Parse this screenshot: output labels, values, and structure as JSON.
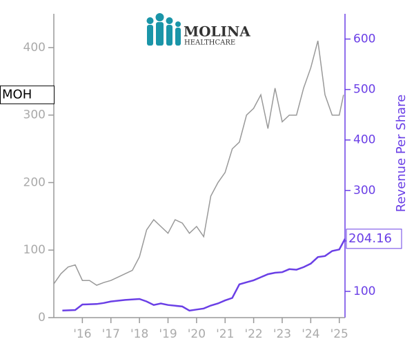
{
  "logo": {
    "name": "MOLINA",
    "tagline": "HEALTHCARE"
  },
  "chart_data": {
    "type": "line",
    "xlim": [
      2015.0,
      2025.2
    ],
    "xticks": [
      {
        "value": 2016,
        "label": "'16"
      },
      {
        "value": 2017,
        "label": "'17"
      },
      {
        "value": 2018,
        "label": "'18"
      },
      {
        "value": 2019,
        "label": "'19"
      },
      {
        "value": 2020,
        "label": "'20"
      },
      {
        "value": 2021,
        "label": "'21"
      },
      {
        "value": 2022,
        "label": "'22"
      },
      {
        "value": 2023,
        "label": "'23"
      },
      {
        "value": 2024,
        "label": "'24"
      },
      {
        "value": 2025,
        "label": "'25"
      }
    ],
    "ylim": [
      0,
      450
    ],
    "yticks": [
      0,
      100,
      200,
      300,
      400
    ],
    "y2lim": [
      48,
      650
    ],
    "y2ticks": [
      100,
      200,
      300,
      400,
      500,
      600
    ],
    "series": [
      {
        "name": "MOH",
        "color": "#999999",
        "axis": "y",
        "x": [
          2015.0,
          2015.25,
          2015.5,
          2015.75,
          2016.0,
          2016.25,
          2016.5,
          2016.75,
          2017.0,
          2017.25,
          2017.5,
          2017.75,
          2018.0,
          2018.25,
          2018.5,
          2018.75,
          2019.0,
          2019.25,
          2019.5,
          2019.75,
          2020.0,
          2020.25,
          2020.5,
          2020.75,
          2021.0,
          2021.25,
          2021.5,
          2021.75,
          2022.0,
          2022.25,
          2022.5,
          2022.75,
          2023.0,
          2023.25,
          2023.5,
          2023.75,
          2024.0,
          2024.25,
          2024.5,
          2024.75,
          2025.0,
          2025.15
        ],
        "values": [
          50,
          65,
          75,
          78,
          55,
          55,
          48,
          52,
          55,
          60,
          65,
          70,
          90,
          130,
          145,
          135,
          125,
          145,
          140,
          125,
          135,
          120,
          180,
          200,
          215,
          250,
          260,
          300,
          310,
          330,
          280,
          340,
          290,
          300,
          300,
          340,
          370,
          410,
          330,
          300,
          300,
          330
        ]
      },
      {
        "name": "Revenue Per Share",
        "color": "#6a3fe6",
        "axis": "y2",
        "x": [
          2015.3,
          2015.75,
          2016.0,
          2016.5,
          2016.75,
          2017.0,
          2017.5,
          2018.0,
          2018.25,
          2018.5,
          2018.75,
          2019.0,
          2019.5,
          2019.75,
          2020.0,
          2020.25,
          2020.5,
          2020.75,
          2021.0,
          2021.25,
          2021.5,
          2021.75,
          2022.0,
          2022.25,
          2022.5,
          2022.75,
          2023.0,
          2023.25,
          2023.5,
          2023.75,
          2024.0,
          2024.25,
          2024.5,
          2024.75,
          2025.0,
          2025.2
        ],
        "values": [
          62,
          63,
          74,
          75,
          77,
          80,
          83,
          85,
          80,
          73,
          76,
          73,
          70,
          62,
          64,
          66,
          72,
          76,
          82,
          87,
          114,
          118,
          122,
          128,
          134,
          137,
          138,
          144,
          143,
          148,
          155,
          168,
          170,
          180,
          183,
          204.16
        ]
      }
    ]
  }
}
